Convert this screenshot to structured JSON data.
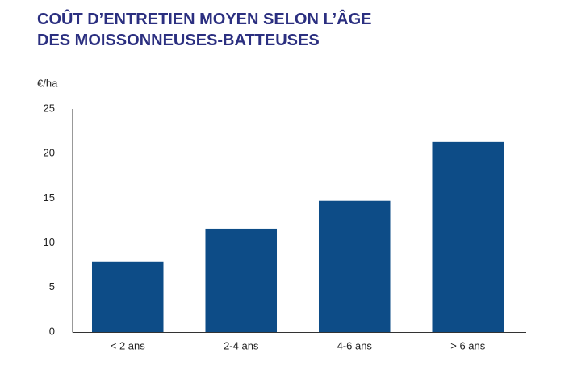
{
  "chart_data": {
    "type": "bar",
    "title": [
      "COÛT D’ENTRETIEN  MOYEN SELON L’ÂGE",
      "DES MOISSONNEUSES-BATTEUSES"
    ],
    "y_label": "€/ha",
    "categories": [
      "< 2 ans",
      "2-4 ans",
      "4-6 ans",
      "> 6 ans"
    ],
    "values": [
      7.9,
      11.6,
      14.7,
      21.3
    ],
    "color": "#0d4c87",
    "ylim": [
      0,
      25
    ],
    "yticks": [
      0,
      5,
      10,
      15,
      20,
      25
    ],
    "grid": false
  }
}
